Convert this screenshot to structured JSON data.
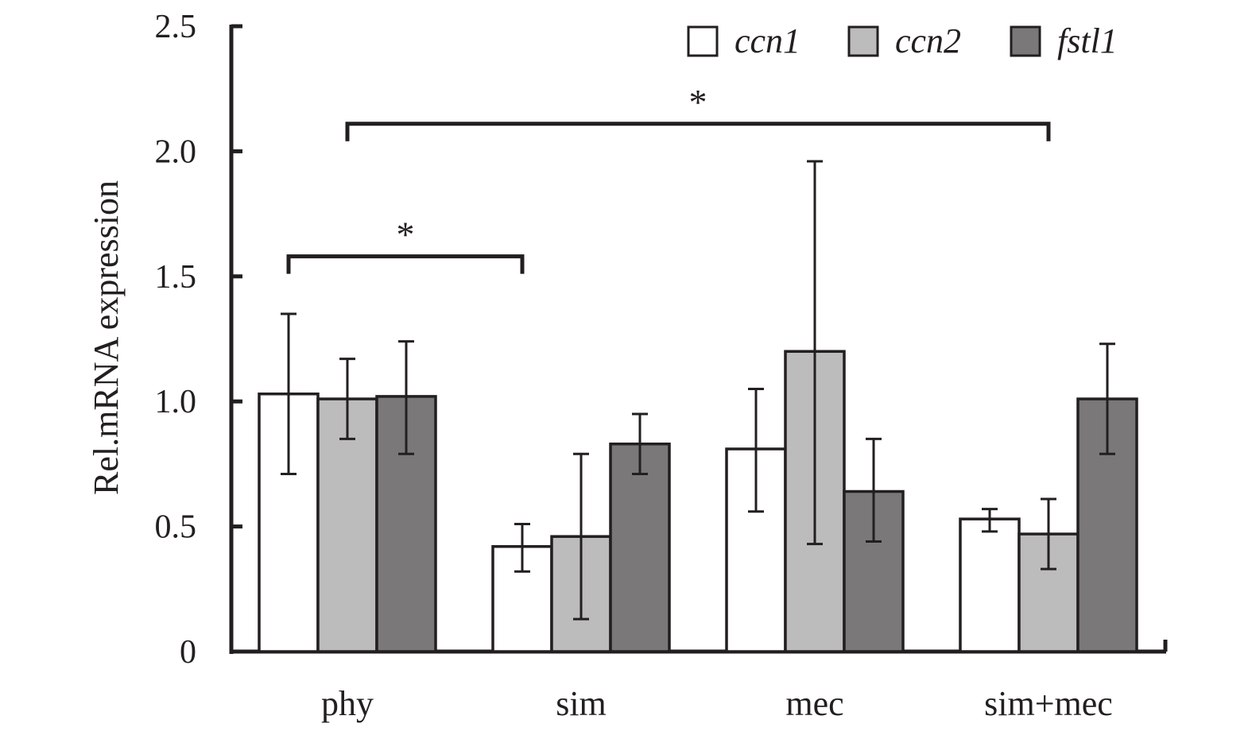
{
  "chart_data": {
    "type": "bar",
    "title": "",
    "xlabel": "",
    "ylabel": "Rel.mRNA expression",
    "ylim": [
      0,
      2.5
    ],
    "yticks": [
      0,
      0.5,
      1.0,
      1.5,
      2.0,
      2.5
    ],
    "ytick_labels": [
      "0",
      "0.5",
      "1.0",
      "1.5",
      "2.0",
      "2.5"
    ],
    "grid": false,
    "legend_position": "top-right",
    "categories": [
      "phy",
      "sim",
      "mec",
      "sim+mec"
    ],
    "series": [
      {
        "name": "ccn1",
        "color": "#ffffff",
        "values": [
          1.03,
          0.42,
          0.81,
          0.53
        ],
        "error_upper": [
          1.35,
          0.51,
          1.05,
          0.57
        ],
        "error_lower": [
          0.71,
          0.32,
          0.56,
          0.48
        ]
      },
      {
        "name": "ccn2",
        "color": "#bcbcbc",
        "values": [
          1.01,
          0.46,
          1.2,
          0.47
        ],
        "error_upper": [
          1.17,
          0.79,
          1.96,
          0.61
        ],
        "error_lower": [
          0.85,
          0.13,
          0.43,
          0.33
        ]
      },
      {
        "name": "fstl1",
        "color": "#7a7879",
        "values": [
          1.02,
          0.83,
          0.64,
          1.01
        ],
        "error_upper": [
          1.24,
          0.95,
          0.85,
          1.23
        ],
        "error_lower": [
          0.79,
          0.71,
          0.44,
          0.79
        ]
      }
    ],
    "annotations": [
      {
        "type": "significance",
        "label": "*",
        "from": {
          "category": "phy",
          "series": "ccn1"
        },
        "to": {
          "category": "sim",
          "series": "ccn1"
        },
        "level": 1.58
      },
      {
        "type": "significance",
        "label": "*",
        "from": {
          "category": "phy",
          "series": "ccn2"
        },
        "to": {
          "category": "sim+mec",
          "series": "ccn2"
        },
        "level": 2.11
      }
    ],
    "edge_color": "#231f20"
  }
}
